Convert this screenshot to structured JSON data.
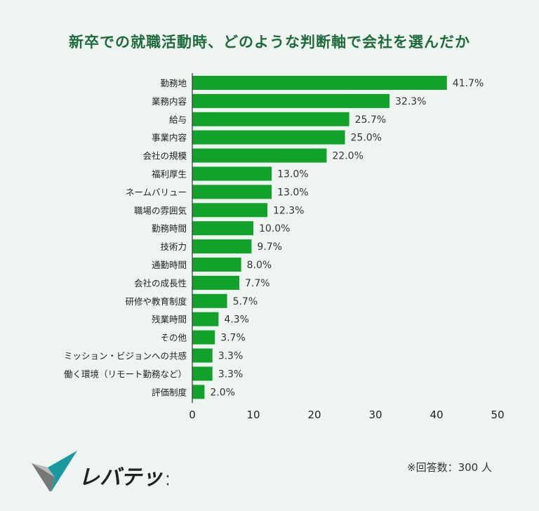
{
  "chart_data": {
    "type": "bar",
    "orientation": "horizontal",
    "title": "新卒での就職活動時、どのような判断軸で会社を選んだか",
    "categories": [
      "勤務地",
      "業務内容",
      "給与",
      "事業内容",
      "会社の規模",
      "福利厚生",
      "ネームバリュー",
      "職場の雰囲気",
      "勤務時間",
      "技術力",
      "通勤時間",
      "会社の成長性",
      "研修や教育制度",
      "残業時間",
      "その他",
      "ミッション・ビジョンへの共感",
      "働く環境（リモート勤務など）",
      "評価制度"
    ],
    "values": [
      41.7,
      32.3,
      25.7,
      25.0,
      22.0,
      13.0,
      13.0,
      12.3,
      10.0,
      9.7,
      8.0,
      7.7,
      5.7,
      4.3,
      3.7,
      3.3,
      3.3,
      2.0
    ],
    "value_labels": [
      "41.7%",
      "32.3%",
      "25.7%",
      "25.0%",
      "22.0%",
      "13.0%",
      "13.0%",
      "12.3%",
      "10.0%",
      "9.7%",
      "8.0%",
      "7.7%",
      "5.7%",
      "4.3%",
      "3.7%",
      "3.3%",
      "3.3%",
      "2.0%"
    ],
    "xlim": [
      0,
      50
    ],
    "xticks": [
      "0",
      "10",
      "20",
      "30",
      "40",
      "50"
    ],
    "xlabel": "",
    "ylabel": "",
    "grid": false,
    "colors": {
      "bar": "#12a12b",
      "title": "#1f6b3e"
    }
  },
  "footer": {
    "brand": "レバテック",
    "note": "※回答数：300 人"
  }
}
